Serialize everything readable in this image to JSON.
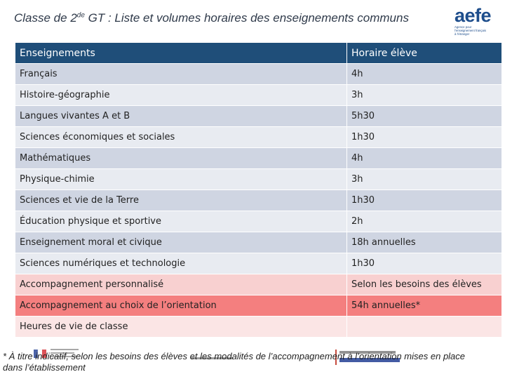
{
  "title": {
    "prefix": "Classe de 2",
    "sup": "de",
    "suffix": " GT : Liste et volumes horaires des enseignements communs"
  },
  "logo": {
    "word": "aefe",
    "subtitle": "Agence pour\nl'enseignement français\nà l'étranger"
  },
  "table": {
    "headers": [
      "Enseignements",
      "Horaire élève"
    ],
    "rows": [
      {
        "subject": "Français",
        "hours": "4h"
      },
      {
        "subject": "Histoire-géographie",
        "hours": "3h"
      },
      {
        "subject": "Langues vivantes A et B",
        "hours": "5h30"
      },
      {
        "subject": "Sciences économiques et sociales",
        "hours": "1h30"
      },
      {
        "subject": "Mathématiques",
        "hours": "4h"
      },
      {
        "subject": "Physique-chimie",
        "hours": "3h"
      },
      {
        "subject": "Sciences et vie de la Terre",
        "hours": "1h30"
      },
      {
        "subject": "Éducation physique et sportive",
        "hours": "2h"
      },
      {
        "subject": "Enseignement moral et civique",
        "hours": "18h annuelles"
      },
      {
        "subject": "Sciences numériques et technologie",
        "hours": "1h30"
      },
      {
        "subject": "Accompagnement personnalisé",
        "hours": "Selon les besoins des élèves"
      },
      {
        "subject": "Accompagnement au choix de l’orientation",
        "hours": "54h annuelles*"
      },
      {
        "subject": "Heures de vie de classe",
        "hours": ""
      }
    ]
  },
  "footnote": "* À titre indicatif, selon les besoins des élèves et les modalités de l’accompagnement à l’orientation mises en place dans l’établissement",
  "colors": {
    "header_bg": "#1f4e79",
    "row_gray_dark": "#cfd5e2",
    "row_gray_light": "#e8ebf1",
    "row_pink": "#f8d0d0",
    "row_red": "#f47f7f",
    "row_pale_pink": "#fbe5e5",
    "brand": "#1e4e8c"
  }
}
